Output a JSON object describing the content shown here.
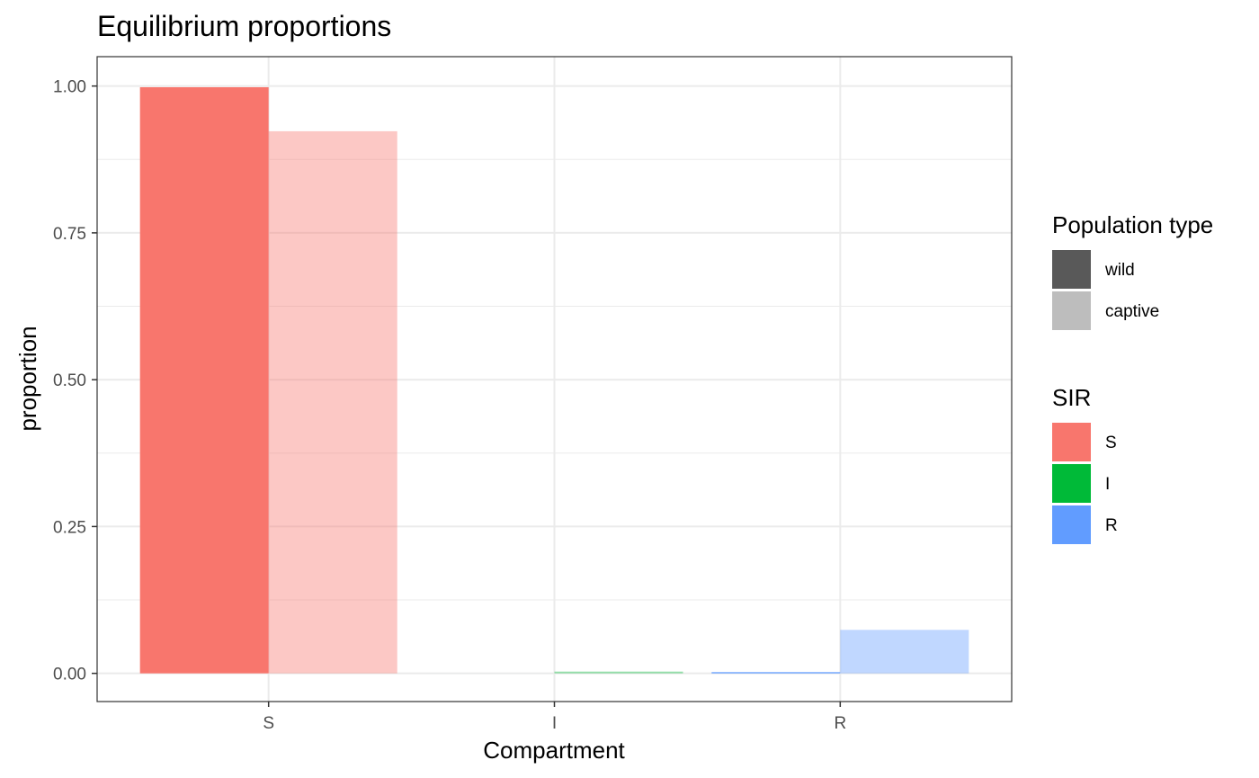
{
  "chart_data": {
    "type": "bar",
    "title": "Equilibrium proportions",
    "xlabel": "Compartment",
    "ylabel": "proportion",
    "categories": [
      "S",
      "I",
      "R"
    ],
    "ylim": [
      -0.048,
      1.05
    ],
    "yticks": [
      0.0,
      0.25,
      0.5,
      0.75,
      1.0
    ],
    "ytick_labels": [
      "0.00",
      "0.25",
      "0.50",
      "0.75",
      "1.00"
    ],
    "grid": true,
    "bars": [
      {
        "category": "S",
        "population": "wild",
        "sir": "S",
        "value": 0.998
      },
      {
        "category": "S",
        "population": "captive",
        "sir": "S",
        "value": 0.923
      },
      {
        "category": "I",
        "population": "wild",
        "sir": "I",
        "value": 0.0
      },
      {
        "category": "I",
        "population": "captive",
        "sir": "I",
        "value": 0.003
      },
      {
        "category": "R",
        "population": "wild",
        "sir": "R",
        "value": 0.002
      },
      {
        "category": "R",
        "population": "captive",
        "sir": "R",
        "value": 0.074
      }
    ],
    "legends": [
      {
        "title": "Population type",
        "items": [
          {
            "label": "wild",
            "color": "#595959"
          },
          {
            "label": "captive",
            "color": "#bdbdbd"
          }
        ]
      },
      {
        "title": "SIR",
        "items": [
          {
            "label": "S",
            "color": "#F8766D"
          },
          {
            "label": "I",
            "color": "#00BA38"
          },
          {
            "label": "R",
            "color": "#619CFF"
          }
        ]
      }
    ],
    "legend_position": "right",
    "sir_colors": {
      "S": "#F8766D",
      "I": "#00BA38",
      "R": "#619CFF"
    },
    "population_alpha": {
      "wild": 1.0,
      "captive": 0.4
    }
  }
}
